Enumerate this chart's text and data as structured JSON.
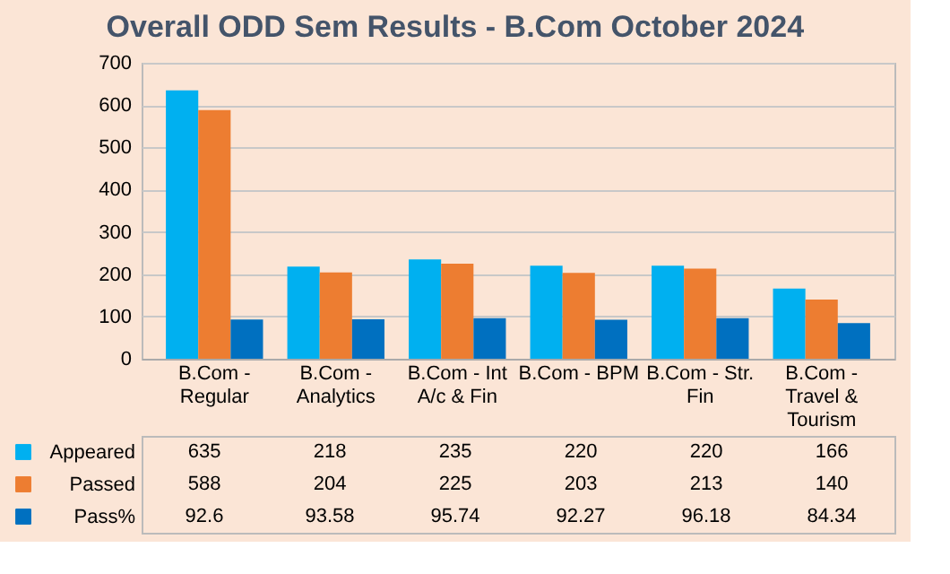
{
  "chart_data": {
    "type": "bar",
    "title": "Overall  ODD Sem Results - B.Com October 2024",
    "categories": [
      "B.Com - Regular",
      "B.Com - Analytics",
      "B.Com - Int A/c & Fin",
      "B.Com - BPM",
      "B.Com - Str. Fin",
      "B.Com - Travel & Tourism"
    ],
    "series": [
      {
        "name": "Appeared",
        "color": "#00b0f0",
        "values": [
          635,
          218,
          235,
          220,
          220,
          166
        ]
      },
      {
        "name": "Passed",
        "color": "#ed7d31",
        "values": [
          588,
          204,
          225,
          203,
          213,
          140
        ]
      },
      {
        "name": "Pass%",
        "color": "#0070c0",
        "values": [
          92.6,
          93.58,
          95.74,
          92.27,
          96.18,
          84.34
        ]
      }
    ],
    "ylim": [
      0,
      700
    ],
    "yticks": [
      0,
      100,
      200,
      300,
      400,
      500,
      600,
      700
    ],
    "grid": "y",
    "legend": "bottom",
    "data_labels": true
  }
}
